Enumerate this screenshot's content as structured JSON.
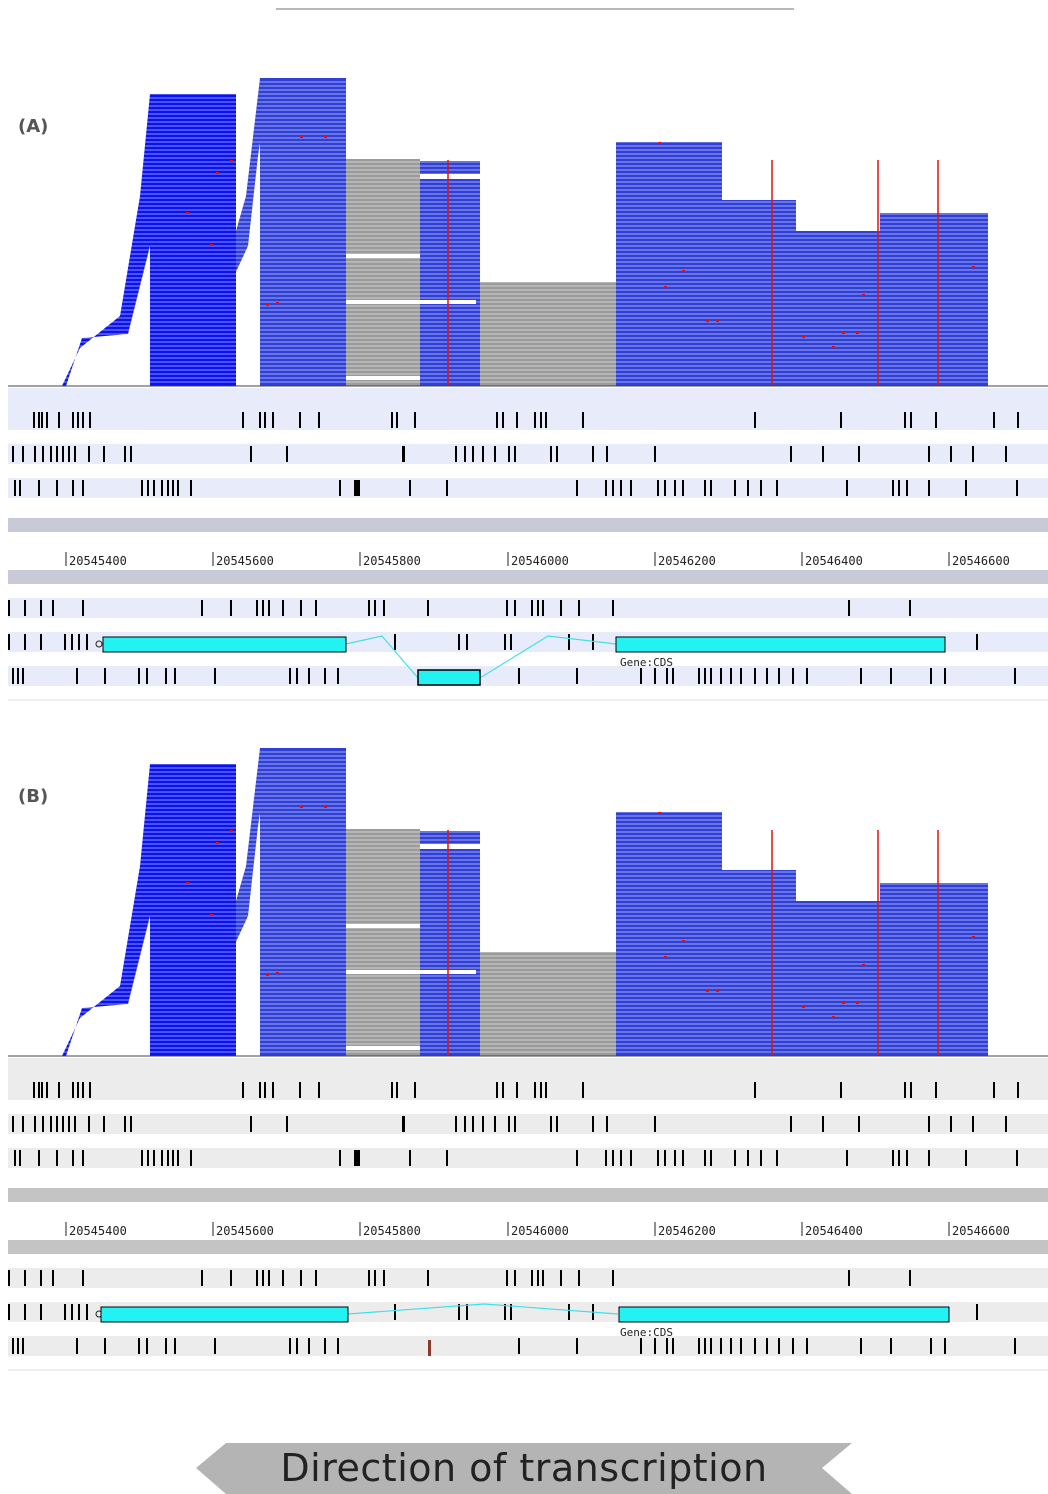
{
  "panels": [
    {
      "id": "a",
      "label": "(A)",
      "variant": "A"
    },
    {
      "id": "b",
      "label": "(B)",
      "variant": "B"
    }
  ],
  "ruler_ticks": [
    "20545400",
    "20545600",
    "20545800",
    "20546000",
    "20546200",
    "20546400",
    "20546600"
  ],
  "gene_label": "Gene:CDS",
  "direction_label": "Direction of transcription",
  "colors": {
    "read_blue": "#2f3fd8",
    "read_deep_blue": "#0a12ee",
    "read_gray": "#9b9b9b",
    "mismatch_red": "#e01010",
    "cds_cyan": "#22f2f2",
    "intron_line": "#40e0e8",
    "track_band_a": "#e8ecfa",
    "track_band_b": "#ececec",
    "sep_bar_a": "#c8cad8",
    "sep_bar_b": "#c4c4c4",
    "arrow_gray": "#b4b4b4"
  }
}
